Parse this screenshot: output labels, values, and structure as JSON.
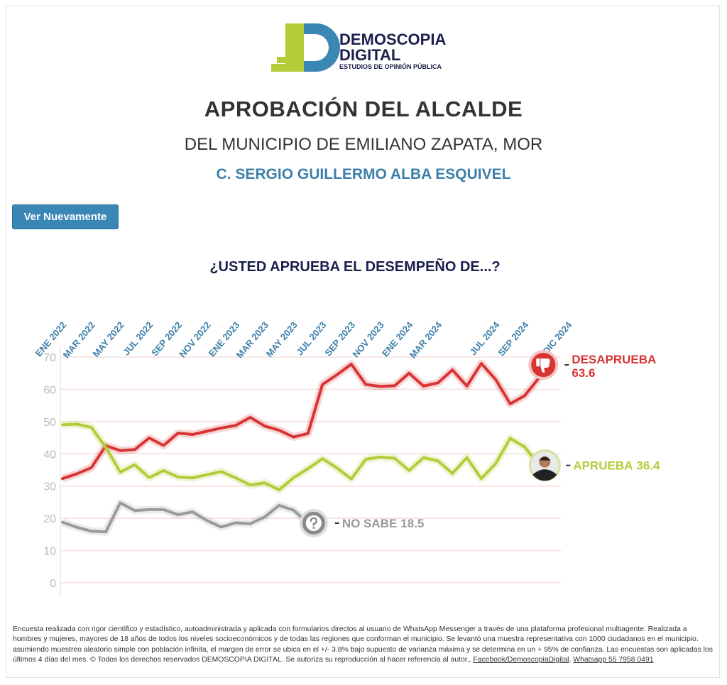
{
  "header": {
    "logo_line1": "DEMOSCOPIA",
    "logo_line2": "DIGITAL",
    "logo_line3": "ESTUDIOS DE OPINIÓN PÚBLICA",
    "title": "APROBACIÓN DEL ALCALDE",
    "subtitle": "DEL MUNICIPIO DE EMILIANO ZAPATA, MOR",
    "person": "C. SERGIO GUILLERMO ALBA ESQUIVEL",
    "button": "Ver Nuevamente"
  },
  "chart_data": {
    "type": "line",
    "title": "¿USTED APRUEBA EL DESEMPEÑO DE...?",
    "categories": [
      "ENE 2022",
      null,
      "MAR 2022",
      null,
      "MAY 2022",
      null,
      "JUL 2022",
      null,
      "SEP 2022",
      null,
      "NOV 2022",
      null,
      "ENE 2023",
      null,
      "MAR 2023",
      null,
      "MAY 2023",
      null,
      "JUL 2023",
      null,
      "SEP 2023",
      null,
      "NOV 2023",
      null,
      "ENE 2024",
      null,
      "MAR 2024",
      null,
      null,
      null,
      "JUL 2024",
      null,
      "SEP 2024",
      null,
      null,
      "DIC 2024"
    ],
    "series": [
      {
        "name": "DESAPRUEBA",
        "color": "#d93434",
        "values": [
          32.3,
          33.8,
          35.7,
          42.5,
          41,
          41.3,
          44.9,
          42.6,
          46.4,
          46,
          47,
          48,
          48.8,
          51.3,
          48.6,
          47.3,
          45.2,
          46.3,
          61.5,
          64.5,
          67.8,
          61.5,
          60.9,
          61.1,
          65,
          61,
          62,
          66,
          61,
          68,
          63,
          55.5,
          58,
          63.6,
          null,
          null
        ]
      },
      {
        "name": "APRUEBA",
        "color": "#b5cc3a",
        "values": [
          49,
          49.2,
          48.2,
          42,
          34.3,
          36.6,
          32.6,
          34.8,
          32.8,
          32.5,
          33.5,
          34.5,
          32.5,
          30.3,
          31,
          28.8,
          32.6,
          35.4,
          38.5,
          35.6,
          32.2,
          38.3,
          39,
          38.6,
          34.8,
          38.8,
          37.8,
          33.9,
          38.8,
          32.3,
          37,
          44.8,
          42.1,
          36.4,
          null,
          null
        ]
      },
      {
        "name": "NO SABE",
        "color": "#9a9a9a",
        "values": [
          18.8,
          17.2,
          16,
          15.8,
          24.8,
          22.4,
          22.7,
          22.7,
          21.1,
          22,
          19.3,
          17.3,
          18.6,
          18.3,
          20.4,
          24,
          22.5,
          18.5,
          null,
          null,
          null,
          null,
          null,
          null,
          null,
          null,
          null,
          null,
          null,
          null,
          null,
          null,
          null,
          null,
          null,
          null
        ]
      }
    ],
    "ylim": [
      0,
      70
    ],
    "yticks": [
      0,
      10,
      20,
      30,
      40,
      50,
      60,
      70
    ],
    "grid": true
  },
  "footnote": {
    "text": "Encuesta realizada con rigor científico y estadístico, autoadministrada y aplicada con formularios directos al usuario de WhatsApp Messenger a través de una plataforma profesional multiagente. Realizada a hombres y mujeres, mayores de 18 años de todos los niveles socioeconómicos y de todas las regiones que conforman el municipio. Se levantó una muestra representativa con 1000 ciudadanos en el municipio. asumiendo muestreo aleatorio simple con población infinita, el margen de error se ubica en el +/- 3.8% bajo supuesto de varianza máxima y se determina en un + 95% de confianza. Las encuestas son aplicadas los últimos 4 días del mes. © Todos los derechos reservados DEMOSCOPIA DIGITAL. Se autoriza su reproducción al hacer referencia al autor.,",
    "link1": "Facebook/DemoscopiaDigital",
    "link2": "Whatsapp 55 7958 0491"
  }
}
